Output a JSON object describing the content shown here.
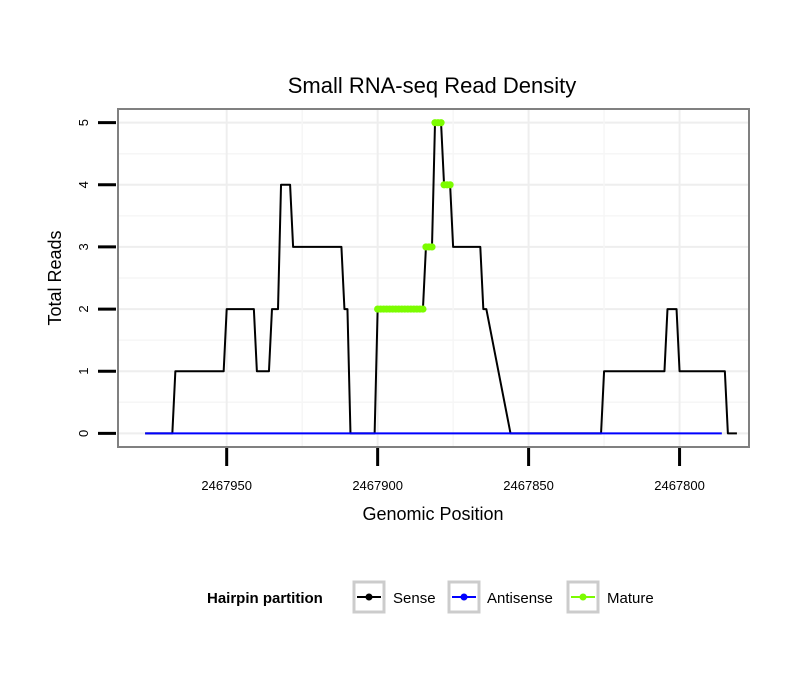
{
  "chart_data": {
    "type": "line",
    "title": "Small RNA-seq Read Density",
    "xlabel": "Genomic Position",
    "ylabel": "Total Reads",
    "x_reversed": true,
    "xlim": [
      2467986,
      2467777
    ],
    "ylim": [
      -0.22,
      5.22
    ],
    "x_ticks": [
      2467950,
      2467900,
      2467850,
      2467800
    ],
    "x_tick_labels": [
      "2467950",
      "2467900",
      "2467850",
      "2467800"
    ],
    "y_ticks": [
      0,
      1,
      2,
      3,
      4,
      5
    ],
    "y_tick_labels": [
      "0",
      "1",
      "2",
      "3",
      "4",
      "5"
    ],
    "grid": true,
    "legend": {
      "title": "Hairpin partition",
      "position": "bottom",
      "entries": [
        "Sense",
        "Antisense",
        "Mature"
      ]
    },
    "colors": {
      "Sense": "#000000",
      "Antisense": "#0000ff",
      "Mature": "#7cfc00"
    },
    "series": [
      {
        "name": "Sense",
        "x": [
          2467977,
          2467968,
          2467967,
          2467951,
          2467950,
          2467941,
          2467940,
          2467936,
          2467935,
          2467933,
          2467932,
          2467929,
          2467928,
          2467923,
          2467922,
          2467912,
          2467911,
          2467910,
          2467909,
          2467908,
          2467901,
          2467900,
          2467885,
          2467884,
          2467882,
          2467881,
          2467879,
          2467878,
          2467876,
          2467875,
          2467867,
          2467866,
          2467865,
          2467864,
          2467856,
          2467855,
          2467826,
          2467825,
          2467805,
          2467804,
          2467801,
          2467800,
          2467785,
          2467784,
          2467781
        ],
        "y": [
          0,
          0,
          1,
          1,
          2,
          2,
          1,
          1,
          2,
          2,
          4,
          4,
          3,
          3,
          3,
          3,
          2,
          2,
          0,
          0,
          0,
          2,
          2,
          3,
          3,
          5,
          5,
          4,
          4,
          3,
          3,
          3,
          2,
          2,
          0,
          0,
          0,
          1,
          1,
          2,
          2,
          1,
          1,
          0,
          0
        ]
      },
      {
        "name": "Antisense",
        "x": [
          2467977,
          2467786
        ],
        "y": [
          0,
          0
        ]
      },
      {
        "name": "Mature",
        "x": [
          2467900,
          2467899,
          2467898,
          2467897,
          2467896,
          2467895,
          2467894,
          2467893,
          2467892,
          2467891,
          2467890,
          2467889,
          2467888,
          2467887,
          2467886,
          2467885,
          2467884,
          2467883,
          2467882,
          2467881,
          2467880,
          2467879,
          2467878,
          2467877,
          2467876
        ],
        "y": [
          2,
          2,
          2,
          2,
          2,
          2,
          2,
          2,
          2,
          2,
          2,
          2,
          2,
          2,
          2,
          2,
          3,
          3,
          3,
          5,
          5,
          5,
          4,
          4,
          4
        ]
      }
    ]
  }
}
